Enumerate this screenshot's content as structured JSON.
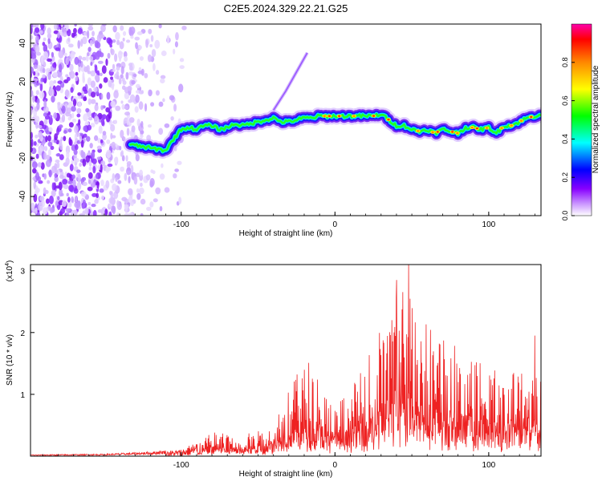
{
  "title": "C2E5.2024.329.22.21.G25",
  "chart_data": [
    {
      "type": "heatmap",
      "xlabel": "Height of straight line (km)",
      "ylabel": "Frequency (Hz)",
      "xlim": [
        -198,
        134
      ],
      "ylim": [
        -50,
        50
      ],
      "xticks": [
        -100,
        0,
        100
      ],
      "yticks": [
        -40,
        -20,
        0,
        20,
        40
      ],
      "colorbar": {
        "label": "Normalized spectral amplitude",
        "range": [
          0,
          1
        ],
        "ticks": [
          "0.0",
          "0.2",
          "0.4",
          "0.6",
          "0.8"
        ],
        "colors": [
          "#ffffff",
          "#cc99ff",
          "#8800ff",
          "#0000ff",
          "#00ffff",
          "#00ff00",
          "#ffff00",
          "#ff8800",
          "#ff0000",
          "#ff00aa"
        ]
      },
      "ridge": {
        "x": [
          -133,
          -125,
          -118,
          -110,
          -105,
          -100,
          -95,
          -90,
          -85,
          -80,
          -75,
          -70,
          -65,
          -60,
          -55,
          -50,
          -45,
          -40,
          -35,
          -30,
          -25,
          -20,
          -15,
          -10,
          -5,
          0,
          5,
          10,
          15,
          20,
          25,
          30,
          35,
          40,
          45,
          50,
          55,
          60,
          65,
          70,
          75,
          80,
          85,
          90,
          95,
          100,
          105,
          110,
          115,
          120,
          125,
          130,
          134
        ],
        "y": [
          -13,
          -14,
          -15,
          -16,
          -10,
          -5,
          -4,
          -5,
          -3,
          -3,
          -5,
          -4,
          -2,
          -3,
          -2,
          -1,
          0,
          1,
          -1,
          -1,
          0,
          1,
          1,
          2,
          2,
          2,
          2,
          2,
          2,
          2,
          2,
          3,
          0,
          -3,
          -3,
          -5,
          -6,
          -5,
          -7,
          -5,
          -6,
          -7,
          -4,
          -4,
          -5,
          -4,
          -7,
          -3,
          -3,
          -1,
          1,
          2,
          3
        ]
      },
      "streak": {
        "x": [
          -40,
          -32,
          -25,
          -18
        ],
        "y": [
          5,
          15,
          25,
          35
        ]
      }
    },
    {
      "type": "line",
      "xlabel": "Height of straight line (km)",
      "ylabel": "SNR (10 * v/v)",
      "y_multiplier": "(x10",
      "y_multiplier_exp": "4",
      "xlim": [
        -198,
        134
      ],
      "ylim": [
        0,
        3.1
      ],
      "xticks": [
        -100,
        0,
        100
      ],
      "yticks": [
        1,
        2,
        3
      ],
      "color": "#ee2222",
      "envelope": {
        "x": [
          -198,
          -150,
          -120,
          -100,
          -85,
          -75,
          -65,
          -55,
          -45,
          -35,
          -25,
          -15,
          -5,
          5,
          15,
          25,
          35,
          45,
          55,
          65,
          75,
          85,
          95,
          105,
          115,
          125,
          134
        ],
        "y": [
          0.02,
          0.03,
          0.06,
          0.1,
          0.28,
          0.4,
          0.25,
          0.35,
          0.4,
          0.8,
          1.2,
          1.5,
          0.9,
          0.9,
          1.2,
          1.6,
          2.2,
          2.7,
          2.2,
          1.8,
          1.7,
          1.5,
          1.4,
          1.3,
          1.3,
          1.4,
          1.5
        ]
      },
      "peaks": [
        {
          "x": 40,
          "y": 2.85
        },
        {
          "x": 48,
          "y": 3.1
        },
        {
          "x": 37,
          "y": 2.2
        },
        {
          "x": 130,
          "y": 1.95
        }
      ]
    }
  ]
}
